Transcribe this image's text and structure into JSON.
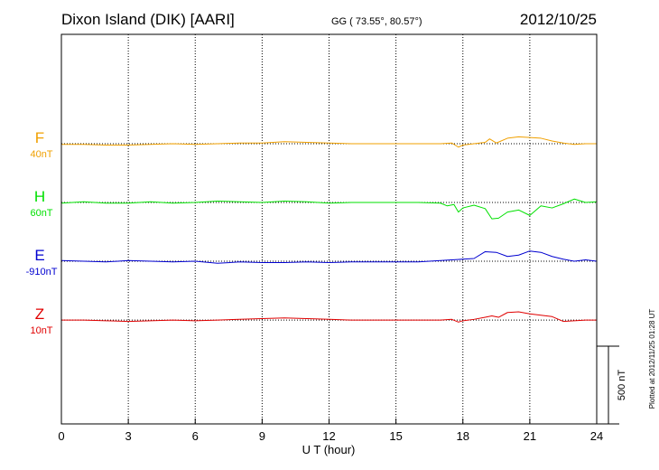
{
  "header": {
    "station": "Dixon Island (DIK)  [AARI]",
    "coords": "GG ( 73.55°,  80.57°)",
    "date": "2012/10/25"
  },
  "footer": {
    "plotted": "Plotted at 2012/11/25 01:28 UT"
  },
  "chart_data": {
    "type": "line",
    "title": "Dixon Island (DIK)  [AARI]",
    "xlabel": "U T (hour)",
    "ylabel": "",
    "xlim": [
      0,
      24
    ],
    "xticks": [
      0,
      3,
      6,
      9,
      12,
      15,
      18,
      21,
      24
    ],
    "vertical_grid": [
      3,
      6,
      9,
      12,
      15,
      18,
      21
    ],
    "grid": true,
    "scale_bar": {
      "label": "500 nT",
      "value_nT": 500
    },
    "ylim_nT": [
      -2050,
      800
    ],
    "series": [
      {
        "name": "F",
        "baseline_label": "40nT",
        "color": "#f0a000",
        "offset_nT": 0,
        "points": [
          [
            0,
            -5
          ],
          [
            1,
            -5
          ],
          [
            2,
            -10
          ],
          [
            3,
            -10
          ],
          [
            4,
            -5
          ],
          [
            5,
            0
          ],
          [
            6,
            -5
          ],
          [
            7,
            0
          ],
          [
            8,
            5
          ],
          [
            9,
            5
          ],
          [
            10,
            15
          ],
          [
            11,
            10
          ],
          [
            12,
            5
          ],
          [
            13,
            0
          ],
          [
            14,
            0
          ],
          [
            15,
            0
          ],
          [
            16,
            0
          ],
          [
            17,
            0
          ],
          [
            17.5,
            5
          ],
          [
            17.8,
            -25
          ],
          [
            18,
            -10
          ],
          [
            18.5,
            0
          ],
          [
            19,
            10
          ],
          [
            19.2,
            35
          ],
          [
            19.5,
            5
          ],
          [
            20,
            40
          ],
          [
            20.5,
            50
          ],
          [
            21,
            45
          ],
          [
            21.5,
            40
          ],
          [
            22,
            20
          ],
          [
            22.5,
            5
          ],
          [
            23,
            -5
          ],
          [
            23.5,
            0
          ],
          [
            24,
            0
          ]
        ]
      },
      {
        "name": "H",
        "baseline_label": "60nT",
        "color": "#00e000",
        "offset_nT": -430,
        "points": [
          [
            0,
            -5
          ],
          [
            1,
            5
          ],
          [
            2,
            -5
          ],
          [
            3,
            -5
          ],
          [
            4,
            5
          ],
          [
            5,
            -5
          ],
          [
            6,
            0
          ],
          [
            7,
            10
          ],
          [
            8,
            5
          ],
          [
            9,
            0
          ],
          [
            10,
            10
          ],
          [
            11,
            5
          ],
          [
            12,
            -5
          ],
          [
            13,
            0
          ],
          [
            14,
            0
          ],
          [
            15,
            0
          ],
          [
            16,
            0
          ],
          [
            17,
            -5
          ],
          [
            17.3,
            -25
          ],
          [
            17.6,
            -15
          ],
          [
            17.8,
            -70
          ],
          [
            18,
            -40
          ],
          [
            18.5,
            -20
          ],
          [
            19,
            -45
          ],
          [
            19.3,
            -120
          ],
          [
            19.6,
            -115
          ],
          [
            20,
            -70
          ],
          [
            20.5,
            -55
          ],
          [
            21,
            -95
          ],
          [
            21.5,
            -25
          ],
          [
            22,
            -40
          ],
          [
            22.5,
            -10
          ],
          [
            23,
            25
          ],
          [
            23.5,
            0
          ],
          [
            24,
            5
          ]
        ]
      },
      {
        "name": "E",
        "baseline_label": "-910nT",
        "color": "#0000d0",
        "offset_nT": -860,
        "points": [
          [
            0,
            5
          ],
          [
            1,
            0
          ],
          [
            2,
            -5
          ],
          [
            3,
            5
          ],
          [
            4,
            0
          ],
          [
            5,
            -5
          ],
          [
            6,
            0
          ],
          [
            7,
            -15
          ],
          [
            8,
            -5
          ],
          [
            9,
            -10
          ],
          [
            10,
            -10
          ],
          [
            11,
            -5
          ],
          [
            12,
            -10
          ],
          [
            13,
            -5
          ],
          [
            14,
            -5
          ],
          [
            15,
            -5
          ],
          [
            16,
            -5
          ],
          [
            17,
            5
          ],
          [
            17.5,
            10
          ],
          [
            18,
            15
          ],
          [
            18.5,
            20
          ],
          [
            19,
            70
          ],
          [
            19.5,
            65
          ],
          [
            20,
            35
          ],
          [
            20.5,
            45
          ],
          [
            21,
            75
          ],
          [
            21.5,
            65
          ],
          [
            22,
            35
          ],
          [
            22.5,
            15
          ],
          [
            23,
            0
          ],
          [
            23.5,
            10
          ],
          [
            24,
            0
          ]
        ]
      },
      {
        "name": "Z",
        "baseline_label": "10nT",
        "color": "#e00000",
        "offset_nT": -1290,
        "points": [
          [
            0,
            0
          ],
          [
            1,
            0
          ],
          [
            2,
            -5
          ],
          [
            3,
            -10
          ],
          [
            4,
            -5
          ],
          [
            5,
            0
          ],
          [
            6,
            -5
          ],
          [
            7,
            0
          ],
          [
            8,
            5
          ],
          [
            9,
            10
          ],
          [
            10,
            15
          ],
          [
            11,
            10
          ],
          [
            12,
            5
          ],
          [
            13,
            0
          ],
          [
            14,
            0
          ],
          [
            15,
            0
          ],
          [
            16,
            0
          ],
          [
            17,
            0
          ],
          [
            17.5,
            5
          ],
          [
            17.8,
            -15
          ],
          [
            18,
            -5
          ],
          [
            18.5,
            5
          ],
          [
            19,
            20
          ],
          [
            19.3,
            30
          ],
          [
            19.6,
            20
          ],
          [
            20,
            55
          ],
          [
            20.5,
            60
          ],
          [
            21,
            45
          ],
          [
            21.5,
            35
          ],
          [
            22,
            25
          ],
          [
            22.5,
            -10
          ],
          [
            23,
            -5
          ],
          [
            23.5,
            0
          ],
          [
            24,
            0
          ]
        ]
      }
    ]
  }
}
